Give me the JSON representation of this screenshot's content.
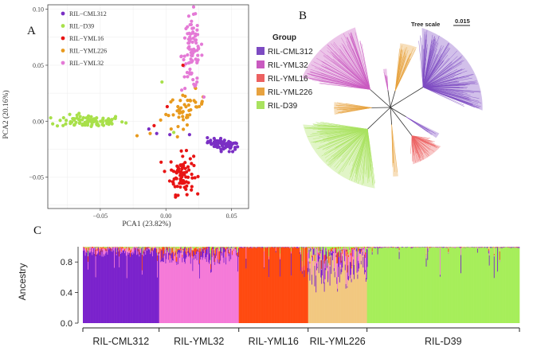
{
  "panel_labels": {
    "a": "A",
    "b": "B",
    "c": "C"
  },
  "colors": {
    "RIL-CML312": "#7a2fc4",
    "RIL-D39": "#a8e04a",
    "RIL-YML16": "#e81414",
    "RIL-YML226": "#e89a1e",
    "RIL-YML32": "#e47ad6",
    "admix_CML312": "#7b22cc",
    "admix_YML32": "#f57ad8",
    "admix_YML16": "#ff4a10",
    "admix_YML226": "#f2c880",
    "admix_D39": "#a6ee5a",
    "tree_CML312": "#7d4bc2",
    "tree_YML32": "#c95ac0",
    "tree_YML16": "#ec6161",
    "tree_YML226": "#e7a23f",
    "tree_D39": "#a9e25f"
  },
  "chart_data": [
    {
      "id": "pca",
      "type": "scatter",
      "title": "",
      "xlabel": "PCA1 (23.82%)",
      "ylabel": "PCA2 (20.16%)",
      "xlim": [
        -0.09,
        0.063
      ],
      "ylim": [
        -0.078,
        0.104
      ],
      "xticks": [
        -0.05,
        0.0,
        0.05
      ],
      "xtick_labels": [
        "−0.05",
        "0.00",
        "0.05"
      ],
      "yticks": [
        -0.05,
        0.0,
        0.05,
        0.1
      ],
      "ytick_labels": [
        "−0.05",
        "0.00",
        "0.05",
        "0.10"
      ],
      "grid": true,
      "legend": {
        "placement": "top-left",
        "entries": [
          "RIL−CML312",
          "RIL−D39",
          "RIL−YML16",
          "RIL−YML226",
          "RIL−YML32"
        ]
      },
      "series": [
        {
          "name": "RIL-CML312",
          "cluster": {
            "cx": 0.044,
            "cy": -0.021,
            "sx": 0.006,
            "sy": 0.0025,
            "n": 70,
            "tilt": -0.25
          }
        },
        {
          "name": "RIL-D39",
          "cluster": {
            "cx": -0.058,
            "cy": 0.0,
            "sx": 0.013,
            "sy": 0.0028,
            "n": 90,
            "tilt": 0.0
          }
        },
        {
          "name": "RIL-YML16",
          "cluster": {
            "cx": 0.012,
            "cy": -0.047,
            "sx": 0.0045,
            "sy": 0.009,
            "n": 85,
            "tilt": 0.0
          }
        },
        {
          "name": "RIL-YML226",
          "cluster": {
            "cx": 0.016,
            "cy": 0.012,
            "sx": 0.007,
            "sy": 0.007,
            "n": 45,
            "tilt": 0.3
          }
        },
        {
          "name": "RIL-YML32",
          "cluster": {
            "cx": 0.02,
            "cy": 0.062,
            "sx": 0.004,
            "sy": 0.017,
            "n": 90,
            "tilt": 0.35
          }
        }
      ],
      "extra_points": [
        {
          "series": "RIL-YML226",
          "x": -0.022,
          "y": -0.013
        },
        {
          "series": "RIL-YML226",
          "x": -0.012,
          "y": -0.011
        },
        {
          "series": "RIL-YML226",
          "x": 0.0,
          "y": 0.006
        },
        {
          "series": "RIL-YML226",
          "x": -0.004,
          "y": 0.001
        },
        {
          "series": "RIL-YML226",
          "x": 0.004,
          "y": -0.007
        },
        {
          "series": "RIL-CML312",
          "x": 0.018,
          "y": -0.012
        },
        {
          "series": "RIL-CML312",
          "x": 0.003,
          "y": -0.012
        },
        {
          "series": "RIL-CML312",
          "x": -0.007,
          "y": -0.011
        },
        {
          "series": "RIL-CML312",
          "x": -0.013,
          "y": -0.007
        },
        {
          "series": "RIL-YML16",
          "x": -0.009,
          "y": -0.004
        },
        {
          "series": "RIL-YML16",
          "x": 0.001,
          "y": 0.013
        },
        {
          "series": "RIL-YML16",
          "x": 0.013,
          "y": 0.05
        },
        {
          "series": "RIL-D39",
          "x": -0.003,
          "y": 0.035
        },
        {
          "series": "RIL-D39",
          "x": 0.006,
          "y": -0.01
        }
      ]
    },
    {
      "id": "tree",
      "type": "other",
      "title": "",
      "tree_scale_label": "Tree scale",
      "tree_scale_value": "0.015",
      "legend": {
        "title": "Group",
        "placement": "left",
        "entries": [
          "RIL-CML312",
          "RIL-YML32",
          "RIL-YML16",
          "RIL-YML226",
          "RIL-D39"
        ]
      },
      "clades": [
        {
          "group": "RIL-CML312",
          "start_deg": -70,
          "end_deg": 2,
          "inner": 0.42,
          "outer": 0.98,
          "leaves": 140
        },
        {
          "group": "RIL-YML32",
          "start_deg": -160,
          "end_deg": -112,
          "inner": 0.3,
          "outer": 1.0,
          "leaves": 90
        },
        {
          "group": "RIL-YML226",
          "start_deg": -82,
          "end_deg": -68,
          "inner": 0.2,
          "outer": 0.75,
          "leaves": 30
        },
        {
          "group": "RIL-YML226",
          "start_deg": 172,
          "end_deg": 186,
          "inner": 0.2,
          "outer": 0.6,
          "leaves": 20
        },
        {
          "group": "RIL-YML16",
          "start_deg": 40,
          "end_deg": 70,
          "inner": 0.4,
          "outer": 0.7,
          "leaves": 60
        },
        {
          "group": "RIL-D39",
          "start_deg": 100,
          "end_deg": 168,
          "inner": 0.35,
          "outer": 0.95,
          "leaves": 130
        },
        {
          "group": "RIL-YML226",
          "start_deg": 84,
          "end_deg": 88,
          "inner": 0.2,
          "outer": 0.8,
          "leaves": 6
        },
        {
          "group": "RIL-CML312",
          "start_deg": 30,
          "end_deg": 36,
          "inner": 0.2,
          "outer": 0.6,
          "leaves": 8
        },
        {
          "group": "RIL-YML32",
          "start_deg": -100,
          "end_deg": -95,
          "inner": 0.2,
          "outer": 0.45,
          "leaves": 8
        }
      ]
    },
    {
      "id": "ancestry",
      "type": "bar",
      "stacked": true,
      "title": "",
      "ylabel": "Ancestry",
      "ylim": [
        0.0,
        1.0
      ],
      "yticks": [
        0.0,
        0.4,
        0.8
      ],
      "ytick_labels": [
        "0.0",
        "0.4",
        "0.8"
      ],
      "group_order": [
        "RIL-CML312",
        "RIL-YML32",
        "RIL-YML16",
        "RIL-YML226",
        "RIL-D39"
      ],
      "groups": [
        {
          "name": "RIL-CML312",
          "label": "RIL-CML312",
          "n": 110,
          "major": "admix_CML312",
          "major_share": 0.93
        },
        {
          "name": "RIL-YML32",
          "label": "RIL-YML32",
          "n": 115,
          "major": "admix_YML32",
          "major_share": 0.88
        },
        {
          "name": "RIL-YML16",
          "label": "RIL-YML16",
          "n": 100,
          "major": "admix_YML16",
          "major_share": 0.99
        },
        {
          "name": "RIL-YML226",
          "label": "RIL-YML226",
          "n": 85,
          "major": "admix_YML226",
          "major_share": 0.7
        },
        {
          "name": "RIL-D39",
          "label": "RIL-D39",
          "n": 220,
          "major": "admix_D39",
          "major_share": 0.99
        }
      ]
    }
  ]
}
